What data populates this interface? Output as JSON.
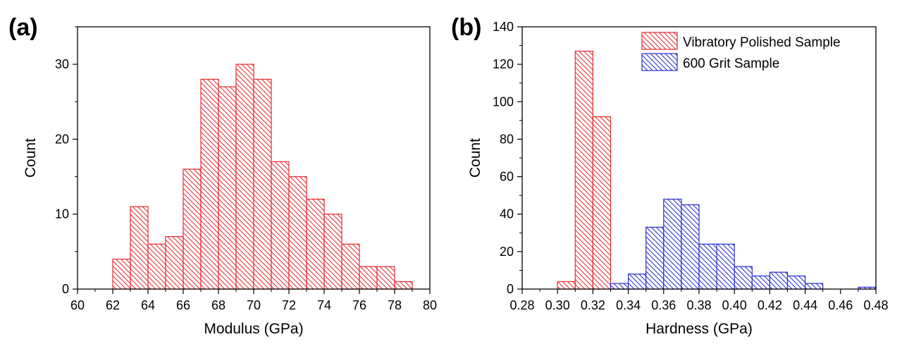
{
  "colors": {
    "red": "#e8292e",
    "blue": "#2b2bd0",
    "axis": "#000000",
    "background": "#ffffff"
  },
  "chart_data": [
    {
      "type": "bar",
      "panel_label": "(a)",
      "title": "",
      "xlabel": "Modulus (GPa)",
      "ylabel": "Count",
      "xlim": [
        60,
        80
      ],
      "ylim": [
        0,
        35
      ],
      "xticks": [
        60,
        62,
        64,
        66,
        68,
        70,
        72,
        74,
        76,
        78,
        80
      ],
      "yticks": [
        0,
        10,
        20,
        30
      ],
      "legend": "none",
      "grid": false,
      "series": [
        {
          "color": "#e8292e",
          "hatch": "diagonal",
          "bin_edges": [
            62,
            63,
            64,
            65,
            66,
            67,
            68,
            69,
            70,
            71,
            72,
            73,
            74,
            75,
            76,
            77,
            78,
            79
          ],
          "values": [
            4,
            11,
            6,
            7,
            16,
            28,
            27,
            30,
            28,
            17,
            15,
            12,
            10,
            6,
            3,
            3,
            1
          ]
        }
      ]
    },
    {
      "type": "bar",
      "panel_label": "(b)",
      "title": "",
      "xlabel": "Hardness (GPa)",
      "ylabel": "Count",
      "xlim": [
        0.28,
        0.48
      ],
      "ylim": [
        0,
        140
      ],
      "xticks": [
        0.28,
        0.3,
        0.32,
        0.34,
        0.36,
        0.38,
        0.4,
        0.42,
        0.44,
        0.46,
        0.48
      ],
      "xtick_labels": [
        "0.28",
        "0.30",
        "0.32",
        "0.34",
        "0.36",
        "0.38",
        "0.40",
        "0.42",
        "0.44",
        "0.46",
        "0.48"
      ],
      "yticks": [
        0,
        20,
        40,
        60,
        80,
        100,
        120,
        140
      ],
      "legend": "top-right",
      "grid": false,
      "series": [
        {
          "name": "Vibratory Polished Sample",
          "color": "#e8292e",
          "hatch": "diagonal",
          "bin_edges": [
            0.3,
            0.31,
            0.32,
            0.33,
            0.34
          ],
          "values": [
            4,
            127,
            92,
            2
          ]
        },
        {
          "name": "600 Grit Sample",
          "color": "#2b2bd0",
          "hatch": "diagonal",
          "bin_edges": [
            0.33,
            0.34,
            0.35,
            0.36,
            0.37,
            0.38,
            0.39,
            0.4,
            0.41,
            0.42,
            0.43,
            0.44,
            0.45,
            0.46,
            0.47,
            0.48
          ],
          "values": [
            3,
            8,
            33,
            48,
            45,
            24,
            24,
            12,
            7,
            9,
            7,
            3,
            0,
            0,
            1
          ]
        }
      ]
    }
  ]
}
